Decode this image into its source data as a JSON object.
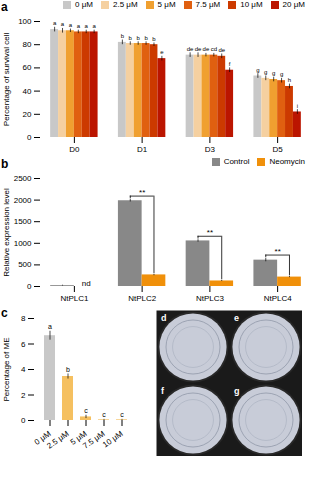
{
  "chart_data": [
    {
      "type": "bar",
      "title": "a",
      "categories": [
        "D0",
        "D1",
        "D3",
        "D5"
      ],
      "series": [
        {
          "name": "0 μM",
          "color": "#c8c8c8",
          "values": [
            93,
            82,
            71,
            53
          ],
          "errors": [
            2.0,
            2.0,
            2.0,
            2.0
          ],
          "annotations": [
            "a",
            "b",
            "de",
            "g"
          ]
        },
        {
          "name": "2.5 μM",
          "color": "#f5d0a0",
          "values": [
            92,
            81,
            71,
            51
          ],
          "errors": [
            2.0,
            1.5,
            2.0,
            2.0
          ],
          "annotations": [
            "a",
            "b",
            "de",
            "g"
          ]
        },
        {
          "name": "5 μM",
          "color": "#f0a030",
          "values": [
            92,
            81,
            71,
            50
          ],
          "errors": [
            1.5,
            1.5,
            1.5,
            2.0
          ],
          "annotations": [
            "a",
            "b",
            "de",
            "g"
          ]
        },
        {
          "name": "7.5 μM",
          "color": "#e06010",
          "values": [
            91,
            81,
            71,
            49
          ],
          "errors": [
            1.5,
            1.5,
            1.5,
            2.0
          ],
          "annotations": [
            "a",
            "b",
            "cd",
            "g"
          ]
        },
        {
          "name": "10 μM",
          "color": "#cc3a00",
          "values": [
            91,
            80,
            70,
            44
          ],
          "errors": [
            1.5,
            1.5,
            2.0,
            2.0
          ],
          "annotations": [
            "a",
            "b",
            "de",
            "h"
          ]
        },
        {
          "name": "20 μM",
          "color": "#bb1500",
          "values": [
            91,
            68,
            58,
            22
          ],
          "errors": [
            1.5,
            2.0,
            2.0,
            2.0
          ],
          "annotations": [
            "a",
            "e",
            "f",
            "i"
          ]
        }
      ],
      "ylabel": "Percentage of survival cell",
      "ylim": [
        0,
        100
      ],
      "yticks": [
        0,
        20,
        40,
        60,
        80,
        100
      ],
      "legend": "upper right"
    },
    {
      "type": "bar",
      "title": "b",
      "categories": [
        "NtPLC1",
        "NtPLC2",
        "NtPLC3",
        "NtPLC4"
      ],
      "series": [
        {
          "name": "Control",
          "color": "#888888",
          "values": [
            20,
            1985,
            1055,
            610
          ],
          "errors": [
            10,
            28,
            28,
            38
          ]
        },
        {
          "name": "Neomycin",
          "color": "#f0900a",
          "values": [
            0,
            268,
            128,
            218
          ],
          "errors": [
            0,
            18,
            13,
            13
          ]
        }
      ],
      "annotations": [
        {
          "text": "nd",
          "category": "NtPLC1",
          "series": "Neomycin"
        },
        {
          "text": "**",
          "category": "NtPLC2"
        },
        {
          "text": "**",
          "category": "NtPLC3"
        },
        {
          "text": "**",
          "category": "NtPLC4"
        }
      ],
      "ylabel": "Relative expression level",
      "ylim": [
        0,
        2500
      ],
      "yticks": [
        0,
        500,
        1000,
        1500,
        2000,
        2500
      ],
      "legend": "upper right"
    },
    {
      "type": "bar",
      "title": "c",
      "categories": [
        "0 μM",
        "2.5 μM",
        "5 μM",
        "7.5 μM",
        "10 μM"
      ],
      "values": [
        6.65,
        3.45,
        0.28,
        0.05,
        0.05
      ],
      "errors": [
        0.35,
        0.2,
        0.13,
        0.04,
        0.04
      ],
      "colors": [
        "#c8c8c8",
        "#f5c060",
        "#f5c060",
        "#f5c060",
        "#f5c060"
      ],
      "annotations": [
        "a",
        "b",
        "c",
        "c",
        "c"
      ],
      "ylabel": "Percentage of ME",
      "ylim": [
        0,
        8
      ],
      "yticks": [
        0,
        2,
        4,
        6,
        8
      ]
    },
    {
      "type": "image",
      "annotations": [
        "d",
        "e",
        "f",
        "g"
      ],
      "color": "#c8ccd8",
      "tick_labels": false
    }
  ]
}
